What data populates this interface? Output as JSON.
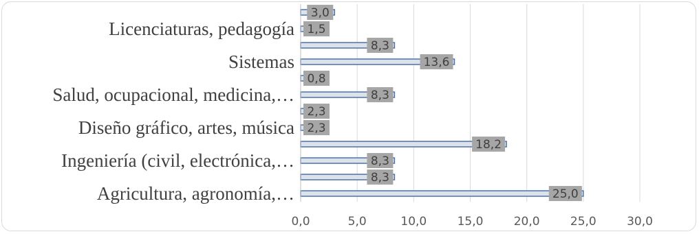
{
  "chart_data": {
    "type": "bar",
    "orientation": "horizontal",
    "categories": [
      "Agricultura, agronomía,…",
      "",
      "Ingeniería (civil, electrónica,…",
      "",
      "Diseño gráfico, artes, música",
      "",
      "Salud, ocupacional, medicina,…",
      "",
      "Sistemas",
      "",
      "Licenciaturas, pedagogía",
      ""
    ],
    "values": [
      25.0,
      8.3,
      8.3,
      18.2,
      2.3,
      2.3,
      8.3,
      0.8,
      13.6,
      8.3,
      1.5,
      3.0
    ],
    "data_labels": [
      "25,0",
      "8,3",
      "8,3",
      "18,2",
      "2,3",
      "2,3",
      "8,3",
      "0,8",
      "13,6",
      "8,3",
      "1,5",
      "3,0"
    ],
    "xlim": [
      0,
      30
    ],
    "xticks": [
      "0,0",
      "5,0",
      "10,0",
      "15,0",
      "20,0",
      "25,0",
      "30,0"
    ],
    "grid": "vertical",
    "legend": "none",
    "colors": {
      "bar_fill": "#dde1e8",
      "bar_edge": "#4a72b0",
      "label_box": "#a6a6a6",
      "gridline": "#d9d9d9",
      "text": "#404040"
    }
  }
}
